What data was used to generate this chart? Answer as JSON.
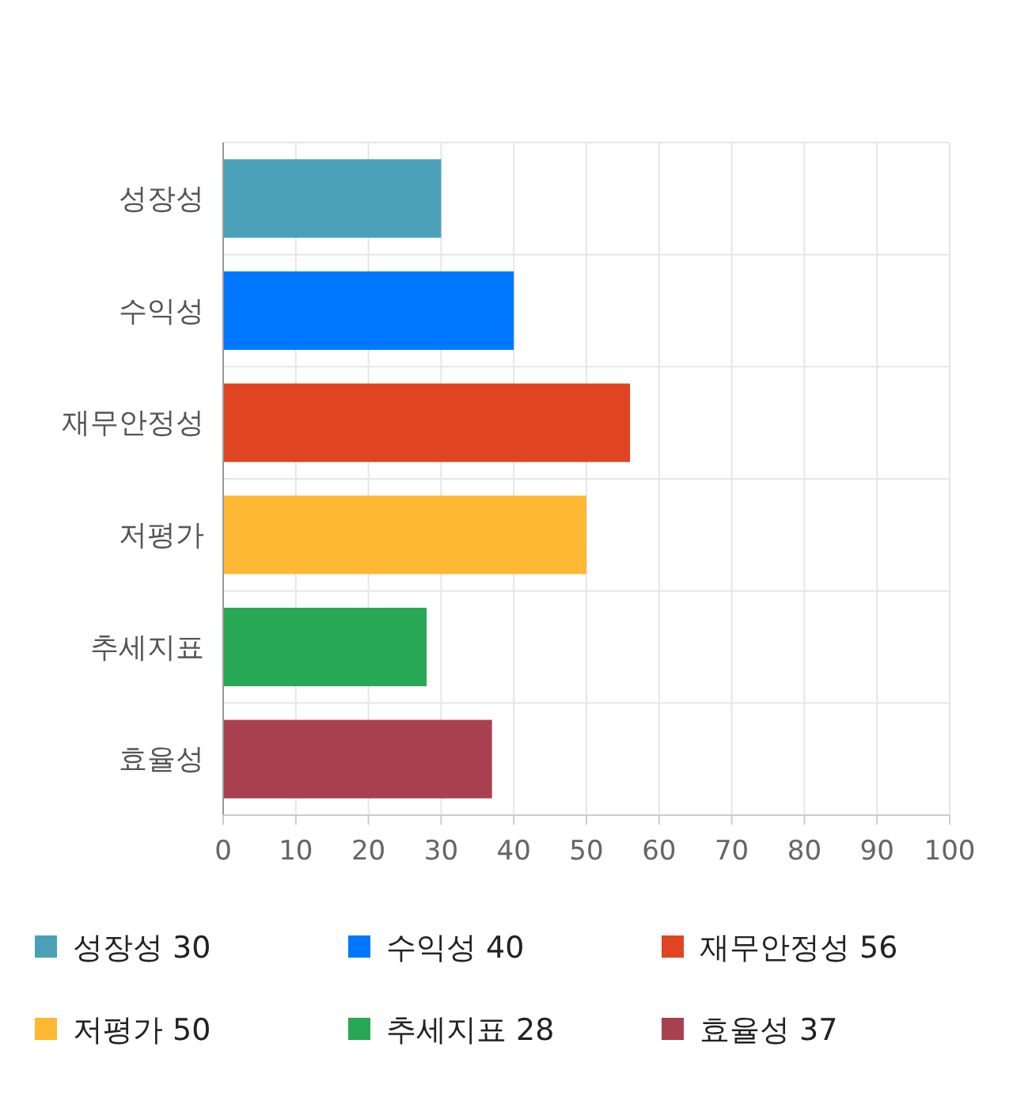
{
  "chart_data": {
    "type": "bar",
    "orientation": "horizontal",
    "categories": [
      "성장성",
      "수익성",
      "재무안정성",
      "저평가",
      "추세지표",
      "효율성"
    ],
    "series": [
      {
        "name": "성장성 30",
        "color": "#4aa0b8",
        "values": [
          30,
          null,
          null,
          null,
          null,
          null
        ]
      },
      {
        "name": "수익성 40",
        "color": "#0077ff",
        "values": [
          null,
          40,
          null,
          null,
          null,
          null
        ]
      },
      {
        "name": "재무안정성 56",
        "color": "#e04422",
        "values": [
          null,
          null,
          56,
          null,
          null,
          null
        ]
      },
      {
        "name": "저평가 50",
        "color": "#ffb833",
        "values": [
          null,
          null,
          null,
          50,
          null,
          null
        ]
      },
      {
        "name": "추세지표 28",
        "color": "#28a755",
        "values": [
          null,
          null,
          null,
          null,
          28,
          null
        ]
      },
      {
        "name": "효율성 37",
        "color": "#a8404f",
        "values": [
          null,
          null,
          null,
          null,
          null,
          37
        ]
      }
    ],
    "xlim": [
      0,
      100
    ],
    "xticks": [
      0,
      10,
      20,
      30,
      40,
      50,
      60,
      70,
      80,
      90,
      100
    ],
    "grid": true,
    "legend": "bottom"
  }
}
